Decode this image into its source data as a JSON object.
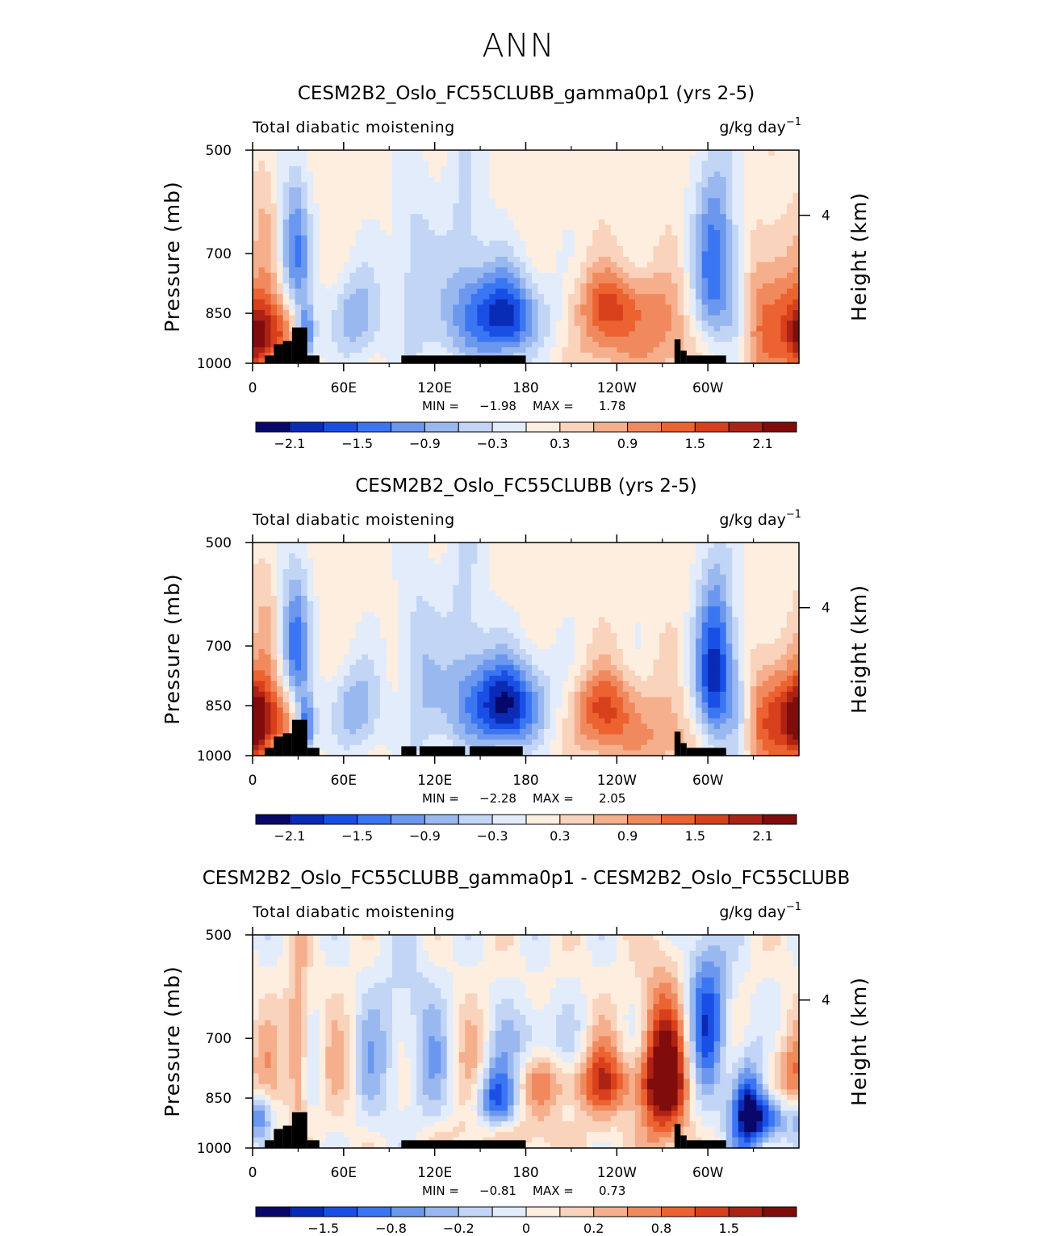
{
  "page_title": "ANN",
  "palette_colors": [
    "#08086b",
    "#0a2bb5",
    "#1a4fe6",
    "#3b76f2",
    "#6b98ee",
    "#9ab8f0",
    "#c2d5f5",
    "#e2ecfb",
    "#fdeee0",
    "#f9d3bc",
    "#f6af8c",
    "#f08a5e",
    "#ec6230",
    "#d8401d",
    "#ac2315",
    "#800c0c"
  ],
  "chart_data": [
    {
      "type": "heatmap",
      "title": "CESM2B2_Oslo_FC55CLUBB_gamma0p1 (yrs 2-5)",
      "variable_label": "Total diabatic moistening",
      "units_label": "g/kg day",
      "units_exponent": "−1",
      "ylabel": "Pressure (mb)",
      "ylabel_right": "Height (km)",
      "y_ticks": [
        "500",
        "700",
        "850",
        "1000"
      ],
      "y_right_ticks": [
        "4"
      ],
      "x_ticks": [
        "0",
        "60E",
        "120E",
        "180",
        "120W",
        "60W"
      ],
      "min_label": "MIN =",
      "min_value": "−1.98",
      "max_label": "MAX =",
      "max_value": "1.78",
      "colorbar_labels": [
        "−2.1",
        "−1.5",
        "−0.9",
        "−0.3",
        "0.3",
        "0.9",
        "1.5",
        "2.1"
      ],
      "blobs": [
        {
          "lon": 165,
          "p": 860,
          "lon_r": 22,
          "p_r": 90,
          "v": -1.98
        },
        {
          "lon": 140,
          "p": 700,
          "lon_r": 10,
          "p_r": 220,
          "v": -0.6
        },
        {
          "lon": 28,
          "p": 690,
          "lon_r": 7,
          "p_r": 120,
          "v": -1.3
        },
        {
          "lon": 35,
          "p": 920,
          "lon_r": 4,
          "p_r": 60,
          "v": -1.4
        },
        {
          "lon": 65,
          "p": 860,
          "lon_r": 12,
          "p_r": 90,
          "v": -1.0
        },
        {
          "lon": 105,
          "p": 780,
          "lon_r": 10,
          "p_r": 200,
          "v": -0.7
        },
        {
          "lon": 305,
          "p": 730,
          "lon_r": 10,
          "p_r": 170,
          "v": -1.5
        },
        {
          "lon": 320,
          "p": 850,
          "lon_r": 7,
          "p_r": 110,
          "v": -0.9
        },
        {
          "lon": 240,
          "p": 830,
          "lon_r": 24,
          "p_r": 70,
          "v": 1.3
        },
        {
          "lon": 340,
          "p": 860,
          "lon_r": 15,
          "p_r": 130,
          "v": 1.3
        },
        {
          "lon": 3,
          "p": 920,
          "lon_r": 8,
          "p_r": 80,
          "v": 1.7
        },
        {
          "lon": 20,
          "p": 900,
          "lon_r": 8,
          "p_r": 70,
          "v": 1.1
        },
        {
          "lon": 8,
          "p": 650,
          "lon_r": 6,
          "p_r": 120,
          "v": 0.4
        },
        {
          "lon": 260,
          "p": 960,
          "lon_r": 40,
          "p_r": 70,
          "v": 0.6
        }
      ],
      "background": 0.15
    },
    {
      "type": "heatmap",
      "title": "CESM2B2_Oslo_FC55CLUBB (yrs 2-5)",
      "variable_label": "Total diabatic moistening",
      "units_label": "g/kg day",
      "units_exponent": "−1",
      "ylabel": "Pressure (mb)",
      "ylabel_right": "Height (km)",
      "y_ticks": [
        "500",
        "700",
        "850",
        "1000"
      ],
      "y_right_ticks": [
        "4"
      ],
      "x_ticks": [
        "0",
        "60E",
        "120E",
        "180",
        "120W",
        "60W"
      ],
      "min_label": "MIN =",
      "min_value": "−2.28",
      "max_label": "MAX =",
      "max_value": "2.05",
      "colorbar_labels": [
        "−2.1",
        "−1.5",
        "−0.9",
        "−0.3",
        "0.3",
        "0.9",
        "1.5",
        "2.1"
      ],
      "blobs": [
        {
          "lon": 168,
          "p": 850,
          "lon_r": 22,
          "p_r": 90,
          "v": -2.2
        },
        {
          "lon": 140,
          "p": 690,
          "lon_r": 10,
          "p_r": 220,
          "v": -0.6
        },
        {
          "lon": 28,
          "p": 690,
          "lon_r": 7,
          "p_r": 120,
          "v": -1.4
        },
        {
          "lon": 35,
          "p": 920,
          "lon_r": 4,
          "p_r": 60,
          "v": -1.5
        },
        {
          "lon": 65,
          "p": 860,
          "lon_r": 12,
          "p_r": 90,
          "v": -1.0
        },
        {
          "lon": 108,
          "p": 780,
          "lon_r": 10,
          "p_r": 200,
          "v": -0.7
        },
        {
          "lon": 305,
          "p": 760,
          "lon_r": 9,
          "p_r": 160,
          "v": -2.0
        },
        {
          "lon": 320,
          "p": 870,
          "lon_r": 6,
          "p_r": 110,
          "v": -0.9
        },
        {
          "lon": 230,
          "p": 850,
          "lon_r": 22,
          "p_r": 70,
          "v": 1.2
        },
        {
          "lon": 345,
          "p": 880,
          "lon_r": 14,
          "p_r": 110,
          "v": 1.6
        },
        {
          "lon": 3,
          "p": 900,
          "lon_r": 7,
          "p_r": 80,
          "v": 1.8
        },
        {
          "lon": 20,
          "p": 890,
          "lon_r": 7,
          "p_r": 70,
          "v": 1.1
        },
        {
          "lon": 8,
          "p": 650,
          "lon_r": 6,
          "p_r": 120,
          "v": 0.4
        },
        {
          "lon": 260,
          "p": 960,
          "lon_r": 40,
          "p_r": 70,
          "v": 0.6
        }
      ],
      "background": 0.15
    },
    {
      "type": "heatmap",
      "title": "CESM2B2_Oslo_FC55CLUBB_gamma0p1 - CESM2B2_Oslo_FC55CLUBB",
      "variable_label": "Total diabatic moistening",
      "units_label": "g/kg day",
      "units_exponent": "−1",
      "ylabel": "Pressure (mb)",
      "ylabel_right": "Height (km)",
      "y_ticks": [
        "500",
        "700",
        "850",
        "1000"
      ],
      "y_right_ticks": [
        "4"
      ],
      "x_ticks": [
        "0",
        "60E",
        "120E",
        "180",
        "120W",
        "60W"
      ],
      "min_label": "MIN =",
      "min_value": "−0.81",
      "max_label": "MAX =",
      "max_value": "0.73",
      "colorbar_labels": [
        "−1.5",
        "−0.8",
        "−0.2",
        "0",
        "0.2",
        "0.8",
        "1.5"
      ],
      "blobs": [
        {
          "lon": 325,
          "p": 860,
          "lon_r": 8,
          "p_r": 100,
          "v": -0.8
        },
        {
          "lon": 300,
          "p": 640,
          "lon_r": 10,
          "p_r": 120,
          "v": -0.5
        },
        {
          "lon": 160,
          "p": 850,
          "lon_r": 10,
          "p_r": 60,
          "v": -0.5
        },
        {
          "lon": 185,
          "p": 710,
          "lon_r": 10,
          "p_r": 60,
          "v": -0.35
        },
        {
          "lon": 5,
          "p": 900,
          "lon_r": 6,
          "p_r": 50,
          "v": -0.4
        },
        {
          "lon": 340,
          "p": 910,
          "lon_r": 12,
          "p_r": 50,
          "v": -0.5
        },
        {
          "lon": 100,
          "p": 720,
          "lon_r": 15,
          "p_r": 150,
          "v": -0.25
        },
        {
          "lon": 270,
          "p": 790,
          "lon_r": 12,
          "p_r": 150,
          "v": 0.65
        },
        {
          "lon": 225,
          "p": 810,
          "lon_r": 35,
          "p_r": 60,
          "v": 0.4
        },
        {
          "lon": 30,
          "p": 740,
          "lon_r": 5,
          "p_r": 150,
          "v": 0.45
        },
        {
          "lon": 345,
          "p": 800,
          "lon_r": 12,
          "p_r": 80,
          "v": 0.4
        },
        {
          "lon": 170,
          "p": 960,
          "lon_r": 40,
          "p_r": 40,
          "v": 0.15
        }
      ],
      "background": 0.02
    }
  ]
}
